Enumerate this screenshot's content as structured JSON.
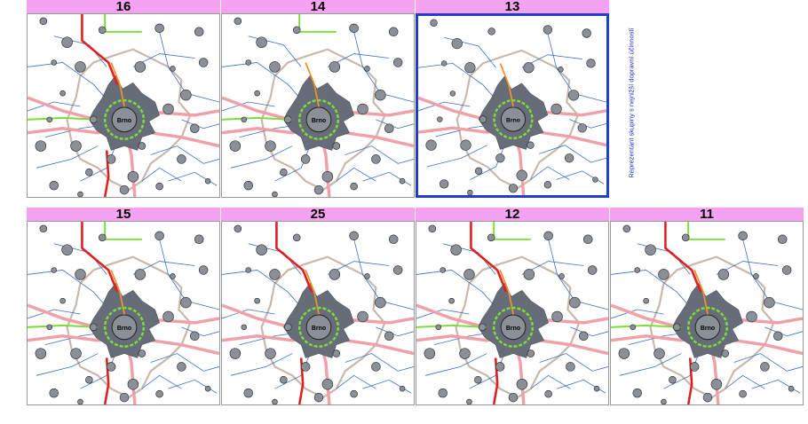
{
  "panels": [
    {
      "label": "16",
      "highlighted": false
    },
    {
      "label": "14",
      "highlighted": false
    },
    {
      "label": "13",
      "highlighted": true
    },
    {
      "label": "15",
      "highlighted": false
    },
    {
      "label": "25",
      "highlighted": false
    },
    {
      "label": "12",
      "highlighted": false
    },
    {
      "label": "11",
      "highlighted": false
    }
  ],
  "map": {
    "center_city": "Brno",
    "colors": {
      "header": "#f5a3f0",
      "highlight_border": "#1f3fc8",
      "road_red": "#e02020",
      "road_pink": "#f0a0a8",
      "road_green": "#7ddd3a",
      "road_orange": "#f09030",
      "road_blue": "#3a6fc8",
      "boundary": "#c8b8ac",
      "urban": "#666d78",
      "node": "#8a8f98"
    }
  },
  "side_label": "Reprezentant skupiny s nejnižší dopravní účinností"
}
